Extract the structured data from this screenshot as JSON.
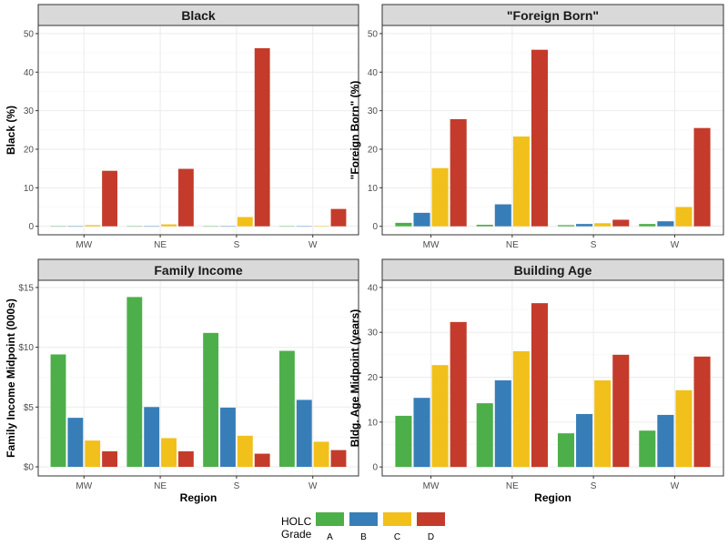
{
  "chart_data": [
    {
      "type": "bar",
      "title": "Black",
      "xlabel": "",
      "ylabel": "Black (%)",
      "categories": [
        "MW",
        "NE",
        "S",
        "W"
      ],
      "yticks": [
        0,
        10,
        20,
        30,
        40,
        50
      ],
      "ytick_labels": [
        "0",
        "10",
        "20",
        "30",
        "40",
        "50"
      ],
      "ylim": [
        -2.2,
        52.1
      ],
      "series": [
        {
          "name": "A",
          "values": [
            0,
            0,
            0,
            0
          ]
        },
        {
          "name": "B",
          "values": [
            0,
            0,
            0,
            0
          ]
        },
        {
          "name": "C",
          "values": [
            0.3,
            0.5,
            2.4,
            0.1
          ]
        },
        {
          "name": "D",
          "values": [
            14.4,
            14.9,
            46.2,
            4.5
          ]
        }
      ]
    },
    {
      "type": "bar",
      "title": "\"Foreign Born\"",
      "xlabel": "",
      "ylabel": "\"Foreign Born\" (%)",
      "categories": [
        "MW",
        "NE",
        "S",
        "W"
      ],
      "yticks": [
        0,
        10,
        20,
        30,
        40,
        50
      ],
      "ytick_labels": [
        "0",
        "10",
        "20",
        "30",
        "40",
        "50"
      ],
      "ylim": [
        -2.2,
        52.1
      ],
      "series": [
        {
          "name": "A",
          "values": [
            0.9,
            0.4,
            0.3,
            0.6
          ]
        },
        {
          "name": "B",
          "values": [
            3.5,
            5.7,
            0.6,
            1.3
          ]
        },
        {
          "name": "C",
          "values": [
            15.1,
            23.3,
            0.8,
            5.0
          ]
        },
        {
          "name": "D",
          "values": [
            27.8,
            45.8,
            1.7,
            25.5
          ]
        }
      ]
    },
    {
      "type": "bar",
      "title": "Family Income",
      "xlabel": "Region",
      "ylabel": "Family Income Midpoint (000s)",
      "categories": [
        "MW",
        "NE",
        "S",
        "W"
      ],
      "yticks": [
        0,
        5,
        10,
        15
      ],
      "ytick_labels": [
        "$0",
        "$5",
        "$10",
        "$15"
      ],
      "ytick_color": "#3a6fb0",
      "ylim": [
        -0.76,
        15.6
      ],
      "series": [
        {
          "name": "A",
          "values": [
            9.4,
            14.2,
            11.2,
            9.7
          ]
        },
        {
          "name": "B",
          "values": [
            4.1,
            5.0,
            4.95,
            5.6
          ]
        },
        {
          "name": "C",
          "values": [
            2.2,
            2.4,
            2.6,
            2.1
          ]
        },
        {
          "name": "D",
          "values": [
            1.3,
            1.3,
            1.1,
            1.4
          ]
        }
      ]
    },
    {
      "type": "bar",
      "title": "Building Age",
      "xlabel": "Region",
      "ylabel": "Bldg. Age Midpoint (years)",
      "categories": [
        "MW",
        "NE",
        "S",
        "W"
      ],
      "yticks": [
        0,
        10,
        20,
        30,
        40
      ],
      "ytick_labels": [
        "0",
        "10",
        "20",
        "30",
        "40"
      ],
      "ylim": [
        -2.0,
        41.6
      ],
      "series": [
        {
          "name": "A",
          "values": [
            11.4,
            14.2,
            7.5,
            8.1
          ]
        },
        {
          "name": "B",
          "values": [
            15.4,
            19.3,
            11.8,
            11.6
          ]
        },
        {
          "name": "C",
          "values": [
            22.7,
            25.8,
            19.3,
            17.1
          ]
        },
        {
          "name": "D",
          "values": [
            32.3,
            36.5,
            25.0,
            24.6
          ]
        }
      ]
    }
  ],
  "legend": {
    "title_line1": "HOLC",
    "title_line2": "Grade",
    "placement": "bottom",
    "items": [
      {
        "label": "A",
        "color": "#4daf4a"
      },
      {
        "label": "B",
        "color": "#377eb8"
      },
      {
        "label": "C",
        "color": "#f2c01b"
      },
      {
        "label": "D",
        "color": "#c43b2c"
      }
    ]
  },
  "grid": true
}
